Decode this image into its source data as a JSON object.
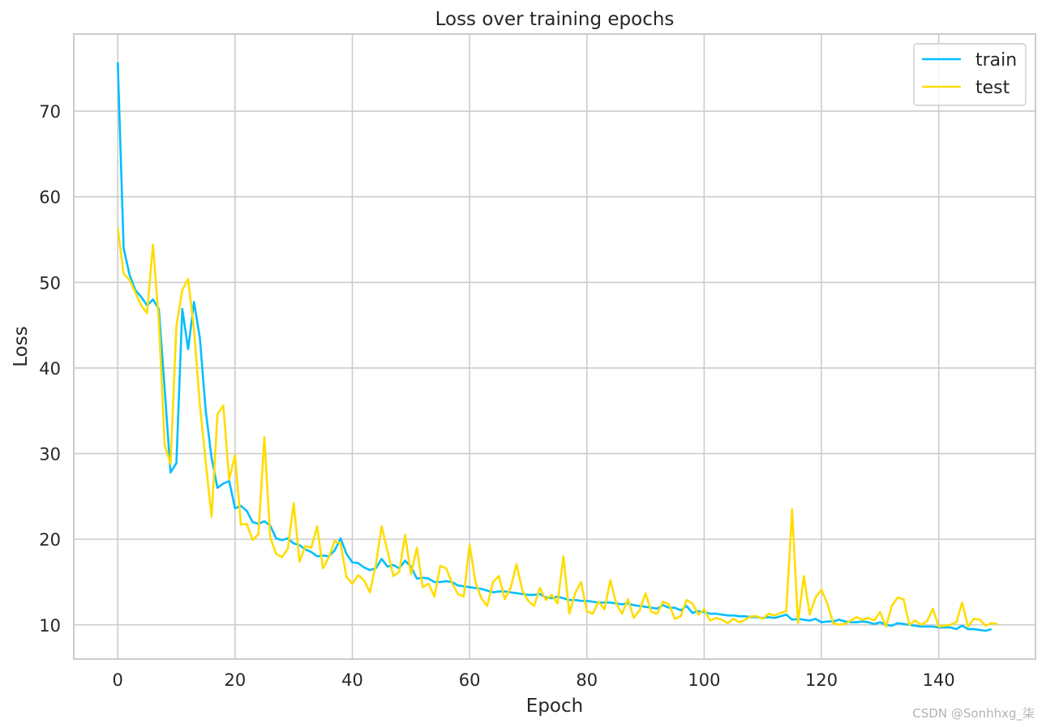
{
  "chart_data": {
    "type": "line",
    "title": "Loss over training epochs",
    "xlabel": "Epoch",
    "ylabel": "Loss",
    "xlim": [
      -7.5,
      156.5
    ],
    "ylim": [
      6,
      79
    ],
    "xticks": [
      0,
      20,
      40,
      60,
      80,
      100,
      120,
      140
    ],
    "yticks": [
      10,
      20,
      30,
      40,
      50,
      60,
      70
    ],
    "grid": true,
    "legend_position": "top-right",
    "series": [
      {
        "name": "train",
        "color": "#00bfff",
        "values": [
          75.7,
          54.0,
          50.9,
          49.1,
          48.3,
          47.3,
          48.0,
          46.9,
          37.5,
          27.8,
          28.9,
          46.9,
          42.2,
          47.7,
          43.5,
          35.0,
          29.5,
          26.0,
          26.5,
          26.8,
          23.6,
          23.9,
          23.3,
          22.0,
          21.8,
          22.1,
          21.6,
          20.1,
          19.9,
          20.1,
          19.5,
          19.3,
          18.8,
          18.5,
          18.0,
          18.1,
          18.0,
          18.7,
          20.1,
          18.3,
          17.3,
          17.2,
          16.7,
          16.4,
          16.6,
          17.7,
          16.8,
          17.0,
          16.6,
          17.5,
          16.8,
          15.4,
          15.5,
          15.4,
          15.0,
          15.0,
          15.1,
          15.0,
          14.6,
          14.5,
          14.4,
          14.3,
          14.2,
          14.0,
          13.8,
          13.9,
          13.9,
          13.8,
          13.7,
          13.6,
          13.5,
          13.5,
          13.6,
          13.2,
          13.1,
          13.3,
          13.1,
          12.9,
          12.9,
          12.8,
          12.8,
          12.7,
          12.6,
          12.6,
          12.6,
          12.5,
          12.4,
          12.5,
          12.3,
          12.2,
          12.1,
          12.0,
          11.9,
          12.3,
          12.0,
          12.0,
          11.7,
          12.2,
          11.4,
          11.6,
          11.5,
          11.3,
          11.3,
          11.2,
          11.1,
          11.1,
          11.0,
          11.0,
          10.9,
          10.9,
          10.8,
          10.9,
          10.8,
          11.0,
          11.2,
          10.6,
          10.7,
          10.6,
          10.5,
          10.7,
          10.3,
          10.4,
          10.4,
          10.6,
          10.4,
          10.3,
          10.3,
          10.4,
          10.3,
          10.1,
          10.3,
          10.0,
          9.9,
          10.2,
          10.1,
          10.0,
          9.9,
          9.8,
          9.8,
          9.8,
          9.7,
          9.7,
          9.7,
          9.5,
          9.9,
          9.5,
          9.5,
          9.4,
          9.3,
          9.5
        ]
      },
      {
        "name": "test",
        "color": "#ffdd00",
        "values": [
          56.3,
          51.0,
          50.3,
          48.8,
          47.3,
          46.4,
          54.4,
          45.6,
          31.0,
          28.8,
          44.9,
          49.1,
          50.4,
          44.5,
          35.7,
          29.0,
          22.6,
          34.6,
          35.6,
          27.0,
          29.8,
          21.7,
          21.8,
          19.9,
          20.6,
          31.9,
          20.2,
          18.3,
          17.9,
          18.9,
          24.2,
          17.4,
          19.2,
          19.0,
          21.5,
          16.6,
          17.9,
          19.8,
          19.5,
          15.6,
          14.8,
          15.8,
          15.2,
          13.8,
          17.0,
          21.5,
          18.6,
          15.7,
          16.2,
          20.5,
          15.9,
          19.0,
          14.4,
          14.8,
          13.3,
          16.9,
          16.6,
          14.9,
          13.6,
          13.3,
          19.4,
          15.0,
          13.1,
          12.2,
          15.0,
          15.7,
          13.0,
          14.3,
          17.1,
          14.0,
          12.8,
          12.2,
          14.3,
          12.9,
          13.5,
          12.5,
          18.0,
          11.3,
          13.7,
          15.0,
          11.6,
          11.3,
          12.7,
          11.8,
          15.2,
          12.5,
          11.3,
          13.0,
          10.8,
          11.7,
          13.7,
          11.5,
          11.3,
          12.7,
          12.4,
          10.7,
          11.0,
          12.9,
          12.5,
          11.2,
          11.8,
          10.5,
          10.8,
          10.6,
          10.2,
          10.7,
          10.3,
          10.6,
          11.0,
          11.0,
          10.7,
          11.3,
          11.1,
          11.4,
          11.6,
          23.5,
          10.2,
          15.7,
          11.2,
          13.2,
          14.1,
          12.5,
          10.2,
          10.0,
          10.1,
          10.5,
          10.9,
          10.6,
          10.8,
          10.5,
          11.5,
          9.8,
          12.2,
          13.2,
          13.0,
          10.0,
          10.5,
          10.0,
          10.4,
          11.9,
          9.8,
          9.9,
          10.0,
          10.3,
          12.6,
          9.8,
          10.7,
          10.6,
          9.9,
          10.2,
          10.1
        ]
      }
    ]
  },
  "watermark": "CSDN @Sonhhxg_柒"
}
